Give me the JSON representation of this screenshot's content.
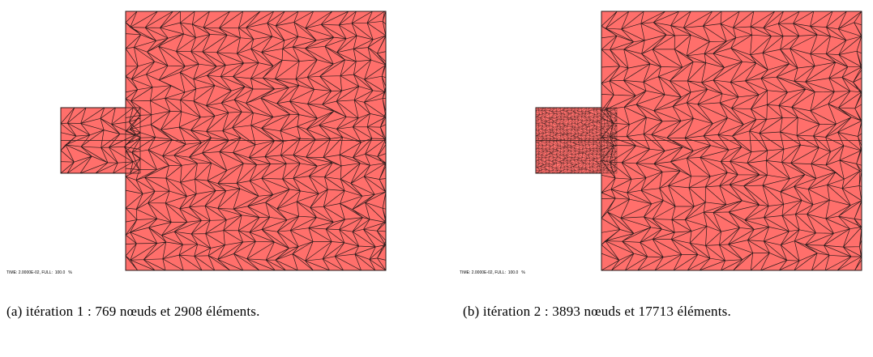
{
  "figures": [
    {
      "label": "(a)",
      "caption": "itération 1 : 769 nœuds et 2908 éléments.",
      "timestamp": "TIME: 2.0000E-02, FULL:  100.0   %"
    },
    {
      "label": "(b)",
      "caption": "itération 2 : 3893 nœuds et 17713 éléments.",
      "timestamp": "TIME: 2.0000E-02, FULL:  100.0   %"
    }
  ],
  "colors": {
    "mesh_fill": "#ff6f6b",
    "mesh_edge": "#2a1a1a"
  }
}
